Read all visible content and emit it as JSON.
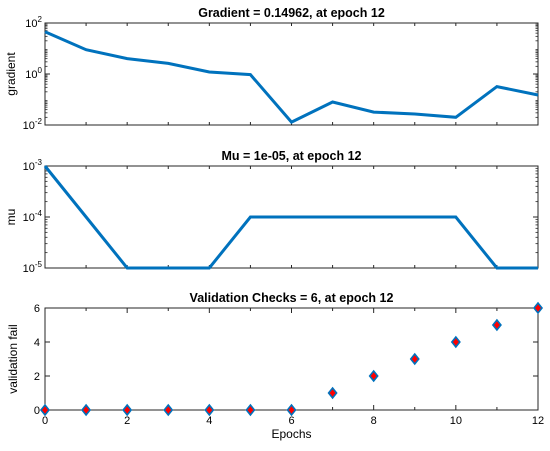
{
  "chart_data": [
    {
      "type": "line",
      "title": "Gradient = 0.14962, at epoch 12",
      "xlabel": "",
      "ylabel": "gradient",
      "yscale": "log",
      "xlim": [
        0,
        12
      ],
      "ylim": [
        0.01,
        100
      ],
      "ytick_labels": [
        {
          "base": "10",
          "exp": "-2",
          "value": 0.01
        },
        {
          "base": "10",
          "exp": "0",
          "value": 1
        },
        {
          "base": "10",
          "exp": "2",
          "value": 100
        }
      ],
      "grid": false,
      "color": "#0072BD",
      "series": [
        {
          "x": [
            0,
            1,
            2,
            3,
            4,
            5,
            6,
            7,
            8,
            9,
            10,
            11,
            12
          ],
          "values": [
            45,
            9,
            4,
            2.6,
            1.2,
            0.95,
            0.013,
            0.08,
            0.032,
            0.027,
            0.02,
            0.32,
            0.15
          ]
        }
      ]
    },
    {
      "type": "line",
      "title": "Mu = 1e-05, at epoch 12",
      "xlabel": "",
      "ylabel": "mu",
      "yscale": "log",
      "xlim": [
        0,
        12
      ],
      "ylim": [
        1e-05,
        0.001
      ],
      "ytick_labels": [
        {
          "base": "10",
          "exp": "-5",
          "value": 1e-05
        },
        {
          "base": "10",
          "exp": "-4",
          "value": 0.0001
        },
        {
          "base": "10",
          "exp": "-3",
          "value": 0.001
        }
      ],
      "grid": false,
      "color": "#0072BD",
      "series": [
        {
          "x": [
            0,
            1,
            2,
            3,
            4,
            5,
            6,
            7,
            8,
            9,
            10,
            11,
            12
          ],
          "values": [
            0.001,
            0.0001,
            1e-05,
            1e-05,
            1e-05,
            0.0001,
            0.0001,
            0.0001,
            0.0001,
            0.0001,
            0.0001,
            1e-05,
            1e-05
          ]
        }
      ]
    },
    {
      "type": "scatter",
      "title": "Validation Checks = 6, at epoch 12",
      "xlabel": "Epochs",
      "ylabel": "validation fail",
      "xlim": [
        0,
        12
      ],
      "ylim": [
        0,
        6
      ],
      "xticks": [
        "0",
        "2",
        "4",
        "6",
        "8",
        "10",
        "12"
      ],
      "yticks": [
        "0",
        "2",
        "4",
        "6"
      ],
      "grid": false,
      "marker": "diamond",
      "marker_face": "#FF0000",
      "marker_edge": "#0072BD",
      "series": [
        {
          "x": [
            0,
            1,
            2,
            3,
            4,
            5,
            6,
            7,
            8,
            9,
            10,
            11,
            12
          ],
          "values": [
            0,
            0,
            0,
            0,
            0,
            0,
            0,
            1,
            2,
            3,
            4,
            5,
            6
          ]
        }
      ]
    }
  ]
}
